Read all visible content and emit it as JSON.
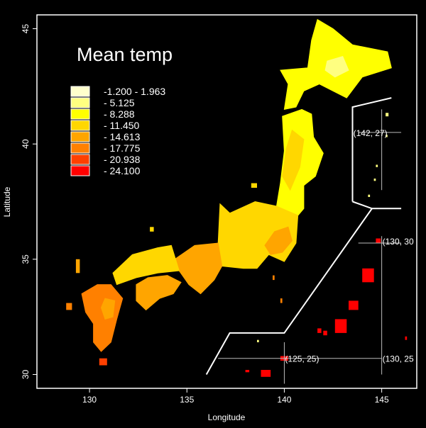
{
  "map": {
    "title": "Mean temp",
    "xlabel": "Longitude",
    "ylabel": "Latitude",
    "xlim": [
      127.3,
      146.8
    ],
    "ylim": [
      29.4,
      45.6
    ],
    "x_ticks": [
      "130",
      "135",
      "140",
      "145"
    ],
    "y_ticks": [
      "30",
      "35",
      "40",
      "45"
    ],
    "background_color": "#000000",
    "foreground_color": "#ffffff",
    "legend": [
      {
        "label": "-1.200 - 1.963",
        "color": "#ffffcc"
      },
      {
        "label": "- 5.125",
        "color": "#ffff80"
      },
      {
        "label": "- 8.288",
        "color": "#ffff00"
      },
      {
        "label": "- 11.450",
        "color": "#ffd700"
      },
      {
        "label": "- 14.613",
        "color": "#ffa500"
      },
      {
        "label": "- 17.775",
        "color": "#ff8000"
      },
      {
        "label": "- 20.938",
        "color": "#ff4000"
      },
      {
        "label": "- 24.100",
        "color": "#ff0000"
      }
    ],
    "annotations": [
      {
        "text": "(142, 27)",
        "x": 145.0,
        "y": 40.5
      },
      {
        "text": "(130, 30",
        "x": 145.0,
        "y": 35.8
      },
      {
        "text": "(125, 25)",
        "x": 140.0,
        "y": 30.7
      },
      {
        "text": "(130, 25",
        "x": 145.0,
        "y": 30.7
      }
    ],
    "inset_crosshairs": [
      {
        "x": 145.0,
        "y": 40.5,
        "x_range": [
          143.8,
          146.0
        ],
        "y_range": [
          38.0,
          41.5
        ]
      },
      {
        "x": 145.0,
        "y": 35.7,
        "x_range": [
          143.8,
          146.0
        ],
        "y_range": [
          30.0,
          36.0
        ]
      },
      {
        "x": 140.0,
        "y": 30.7,
        "x_range": [
          136.6,
          145.0
        ],
        "y_range": [
          29.6,
          31.4
        ]
      }
    ],
    "inset_boundaries": [
      [
        [
          143.5,
          37.5
        ],
        [
          143.5,
          41.6
        ],
        [
          145.5,
          42.0
        ]
      ],
      [
        [
          143.5,
          37.5
        ],
        [
          144.5,
          37.2
        ],
        [
          146.0,
          37.2
        ]
      ],
      [
        [
          136.0,
          30.0
        ],
        [
          137.2,
          31.8
        ],
        [
          140.0,
          31.8
        ],
        [
          144.5,
          37.2
        ]
      ]
    ],
    "regions": [
      {
        "name": "Hokkaido",
        "band": 2,
        "poly": [
          [
            140.0,
            41.5
          ],
          [
            140.2,
            42.6
          ],
          [
            139.8,
            43.2
          ],
          [
            141.2,
            43.3
          ],
          [
            141.4,
            44.5
          ],
          [
            141.7,
            45.4
          ],
          [
            142.5,
            45.0
          ],
          [
            143.5,
            44.3
          ],
          [
            145.3,
            44.0
          ],
          [
            145.5,
            43.3
          ],
          [
            144.0,
            42.9
          ],
          [
            143.2,
            42.0
          ],
          [
            141.8,
            42.6
          ],
          [
            141.0,
            42.3
          ],
          [
            140.6,
            41.6
          ]
        ]
      },
      {
        "name": "Hokkaido-core",
        "band": 1,
        "poly": [
          [
            142.2,
            43.6
          ],
          [
            143.0,
            43.8
          ],
          [
            143.3,
            43.2
          ],
          [
            142.6,
            42.9
          ],
          [
            142.1,
            43.2
          ]
        ]
      },
      {
        "name": "Tohoku",
        "band": 2,
        "poly": [
          [
            139.9,
            41.2
          ],
          [
            140.9,
            41.5
          ],
          [
            141.4,
            41.3
          ],
          [
            141.5,
            40.3
          ],
          [
            142.0,
            39.6
          ],
          [
            141.6,
            38.6
          ],
          [
            141.0,
            38.2
          ],
          [
            141.0,
            37.2
          ],
          [
            140.6,
            36.8
          ],
          [
            139.6,
            37.3
          ],
          [
            139.8,
            38.3
          ],
          [
            140.0,
            39.7
          ]
        ]
      },
      {
        "name": "Tohoku-inner",
        "band": 3,
        "poly": [
          [
            140.4,
            40.6
          ],
          [
            141.0,
            40.2
          ],
          [
            140.8,
            39.0
          ],
          [
            140.3,
            38.0
          ],
          [
            139.9,
            38.6
          ],
          [
            140.1,
            39.8
          ]
        ]
      },
      {
        "name": "Chubu-Kanto",
        "band": 3,
        "poly": [
          [
            136.7,
            37.4
          ],
          [
            137.2,
            37.0
          ],
          [
            138.5,
            37.5
          ],
          [
            139.6,
            37.3
          ],
          [
            140.7,
            36.9
          ],
          [
            140.6,
            35.7
          ],
          [
            140.0,
            34.9
          ],
          [
            139.2,
            35.2
          ],
          [
            138.6,
            34.6
          ],
          [
            137.9,
            34.6
          ],
          [
            136.8,
            34.7
          ],
          [
            136.6,
            35.7
          ]
        ]
      },
      {
        "name": "Kanto-plain",
        "band": 4,
        "poly": [
          [
            139.3,
            35.2
          ],
          [
            139.9,
            35.3
          ],
          [
            140.4,
            35.8
          ],
          [
            140.2,
            36.4
          ],
          [
            139.5,
            36.2
          ],
          [
            139.0,
            35.6
          ]
        ]
      },
      {
        "name": "Kansai",
        "band": 4,
        "poly": [
          [
            134.2,
            34.9
          ],
          [
            135.4,
            35.6
          ],
          [
            136.6,
            35.7
          ],
          [
            136.8,
            34.7
          ],
          [
            136.4,
            34.1
          ],
          [
            135.7,
            33.5
          ],
          [
            135.1,
            33.9
          ],
          [
            134.6,
            34.5
          ]
        ]
      },
      {
        "name": "Chugoku",
        "band": 3,
        "poly": [
          [
            131.2,
            34.4
          ],
          [
            132.2,
            35.2
          ],
          [
            133.5,
            35.5
          ],
          [
            134.2,
            35.6
          ],
          [
            134.6,
            34.5
          ],
          [
            133.5,
            34.4
          ],
          [
            132.4,
            34.2
          ],
          [
            131.4,
            33.9
          ]
        ]
      },
      {
        "name": "Shikoku",
        "band": 4,
        "poly": [
          [
            132.4,
            33.9
          ],
          [
            133.0,
            34.2
          ],
          [
            134.0,
            34.3
          ],
          [
            134.7,
            34.0
          ],
          [
            134.3,
            33.5
          ],
          [
            133.6,
            33.3
          ],
          [
            132.9,
            32.8
          ],
          [
            132.4,
            33.2
          ]
        ]
      },
      {
        "name": "Kyushu",
        "band": 5,
        "poly": [
          [
            129.6,
            33.5
          ],
          [
            130.4,
            33.9
          ],
          [
            131.1,
            33.9
          ],
          [
            131.7,
            33.3
          ],
          [
            131.4,
            32.4
          ],
          [
            131.1,
            31.4
          ],
          [
            130.6,
            31.0
          ],
          [
            130.2,
            31.4
          ],
          [
            130.2,
            32.2
          ],
          [
            129.8,
            32.7
          ]
        ]
      },
      {
        "name": "Kyushu-inner",
        "band": 4,
        "poly": [
          [
            130.8,
            33.3
          ],
          [
            131.3,
            33.2
          ],
          [
            131.2,
            32.5
          ],
          [
            130.8,
            32.4
          ],
          [
            130.6,
            32.9
          ]
        ]
      }
    ],
    "islands": [
      {
        "name": "Tsushima",
        "band": 4,
        "x": 129.3,
        "y": 34.4,
        "w": 0.2,
        "h": 0.6
      },
      {
        "name": "Goto",
        "band": 5,
        "x": 128.8,
        "y": 32.8,
        "w": 0.3,
        "h": 0.3
      },
      {
        "name": "Yakushima",
        "band": 6,
        "x": 130.5,
        "y": 30.4,
        "w": 0.4,
        "h": 0.3
      },
      {
        "name": "Sado",
        "band": 3,
        "x": 138.3,
        "y": 38.1,
        "w": 0.3,
        "h": 0.2
      },
      {
        "name": "Izu",
        "band": 5,
        "x": 139.4,
        "y": 34.1,
        "w": 0.1,
        "h": 0.2
      },
      {
        "name": "Izu-south",
        "band": 5,
        "x": 139.8,
        "y": 33.1,
        "w": 0.1,
        "h": 0.2
      },
      {
        "name": "Oki",
        "band": 3,
        "x": 133.1,
        "y": 36.2,
        "w": 0.2,
        "h": 0.2
      },
      {
        "name": "Ogasawara-a",
        "band": 1,
        "x": 145.2,
        "y": 41.2,
        "w": 0.15,
        "h": 0.15
      },
      {
        "name": "Ogasawara-b",
        "band": 1,
        "x": 145.2,
        "y": 40.3,
        "w": 0.1,
        "h": 0.1
      },
      {
        "name": "Ogasawara-c",
        "band": 1,
        "x": 144.7,
        "y": 39.0,
        "w": 0.1,
        "h": 0.1
      },
      {
        "name": "Ogasawara-d",
        "band": 1,
        "x": 144.6,
        "y": 38.4,
        "w": 0.1,
        "h": 0.1
      },
      {
        "name": "Ogasawara-e",
        "band": 1,
        "x": 144.3,
        "y": 37.7,
        "w": 0.1,
        "h": 0.1
      },
      {
        "name": "Amami",
        "band": 7,
        "x": 144.7,
        "y": 35.7,
        "w": 0.25,
        "h": 0.2
      },
      {
        "name": "Okinawa-a",
        "band": 7,
        "x": 144.0,
        "y": 34.0,
        "w": 0.6,
        "h": 0.6
      },
      {
        "name": "Okinawa-b",
        "band": 7,
        "x": 143.3,
        "y": 32.8,
        "w": 0.5,
        "h": 0.4
      },
      {
        "name": "Okinawa-c",
        "band": 7,
        "x": 142.6,
        "y": 31.8,
        "w": 0.6,
        "h": 0.6
      },
      {
        "name": "Okinawa-d",
        "band": 7,
        "x": 142.0,
        "y": 31.7,
        "w": 0.2,
        "h": 0.2
      },
      {
        "name": "Okinawa-e",
        "band": 7,
        "x": 141.7,
        "y": 31.8,
        "w": 0.2,
        "h": 0.2
      },
      {
        "name": "Miyako",
        "band": 7,
        "x": 139.8,
        "y": 30.6,
        "w": 0.4,
        "h": 0.2
      },
      {
        "name": "Yaeyama-a",
        "band": 7,
        "x": 138.8,
        "y": 29.9,
        "w": 0.5,
        "h": 0.3
      },
      {
        "name": "Yaeyama-b",
        "band": 7,
        "x": 138.0,
        "y": 30.1,
        "w": 0.2,
        "h": 0.1
      },
      {
        "name": "Daito",
        "band": 7,
        "x": 146.2,
        "y": 31.5,
        "w": 0.1,
        "h": 0.15
      },
      {
        "name": "Senkaku",
        "band": 1,
        "x": 138.6,
        "y": 31.4,
        "w": 0.1,
        "h": 0.1
      }
    ]
  }
}
